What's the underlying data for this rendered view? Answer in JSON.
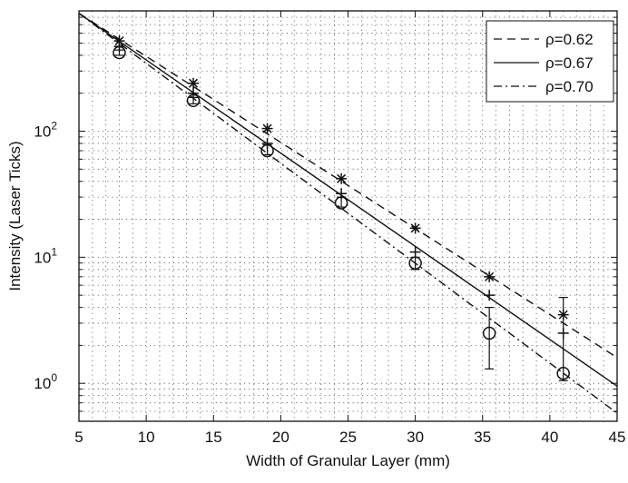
{
  "chart_data": {
    "type": "scatter",
    "title": "",
    "xlabel": "Width of Granular Layer (mm)",
    "ylabel": "Intensity (Laser Ticks)",
    "x_scale": "linear",
    "y_scale": "log",
    "xlim": [
      5,
      45
    ],
    "ylim": [
      0.5,
      900
    ],
    "x_ticks": [
      "5",
      "10",
      "15",
      "20",
      "25",
      "30",
      "35",
      "40",
      "45"
    ],
    "x_tick_values": [
      5,
      10,
      15,
      20,
      25,
      30,
      35,
      40,
      45
    ],
    "y_ticks": [
      {
        "base": "10",
        "exp": "0",
        "value": 1
      },
      {
        "base": "10",
        "exp": "1",
        "value": 10
      },
      {
        "base": "10",
        "exp": "2",
        "value": 100
      }
    ],
    "grid": true,
    "grid_style": "dotted",
    "legend_position": "top-right",
    "series": [
      {
        "name": "ρ=0.62",
        "kind": "fit-line",
        "dash": "dashed",
        "x": [
          5,
          45
        ],
        "y": [
          860,
          1.6
        ]
      },
      {
        "name": "ρ=0.67",
        "kind": "fit-line",
        "dash": "solid",
        "x": [
          5,
          45
        ],
        "y": [
          860,
          0.95
        ]
      },
      {
        "name": "ρ=0.70",
        "kind": "fit-line",
        "dash": "dashdot",
        "x": [
          5,
          45
        ],
        "y": [
          860,
          0.58
        ]
      },
      {
        "kind": "points",
        "marker": "star",
        "x": [
          8,
          13.5,
          19,
          24.5,
          30,
          35.5,
          41
        ],
        "y": [
          520,
          240,
          105,
          42,
          17,
          7,
          3.5
        ]
      },
      {
        "kind": "points",
        "marker": "plus",
        "x": [
          8,
          13.5,
          19,
          24.5,
          30,
          35.5,
          41
        ],
        "y": [
          470,
          200,
          80,
          32,
          11,
          5,
          2.5
        ]
      },
      {
        "kind": "points",
        "marker": "circle",
        "x": [
          8,
          13.5,
          19,
          24.5,
          30,
          35.5,
          41
        ],
        "y": [
          420,
          175,
          70,
          27,
          9,
          2.5,
          1.2
        ],
        "error_low": [
          400,
          165,
          65,
          25,
          8,
          1.3,
          1.05
        ],
        "error_high": [
          440,
          185,
          78,
          30,
          10,
          4,
          4.8
        ]
      }
    ]
  }
}
